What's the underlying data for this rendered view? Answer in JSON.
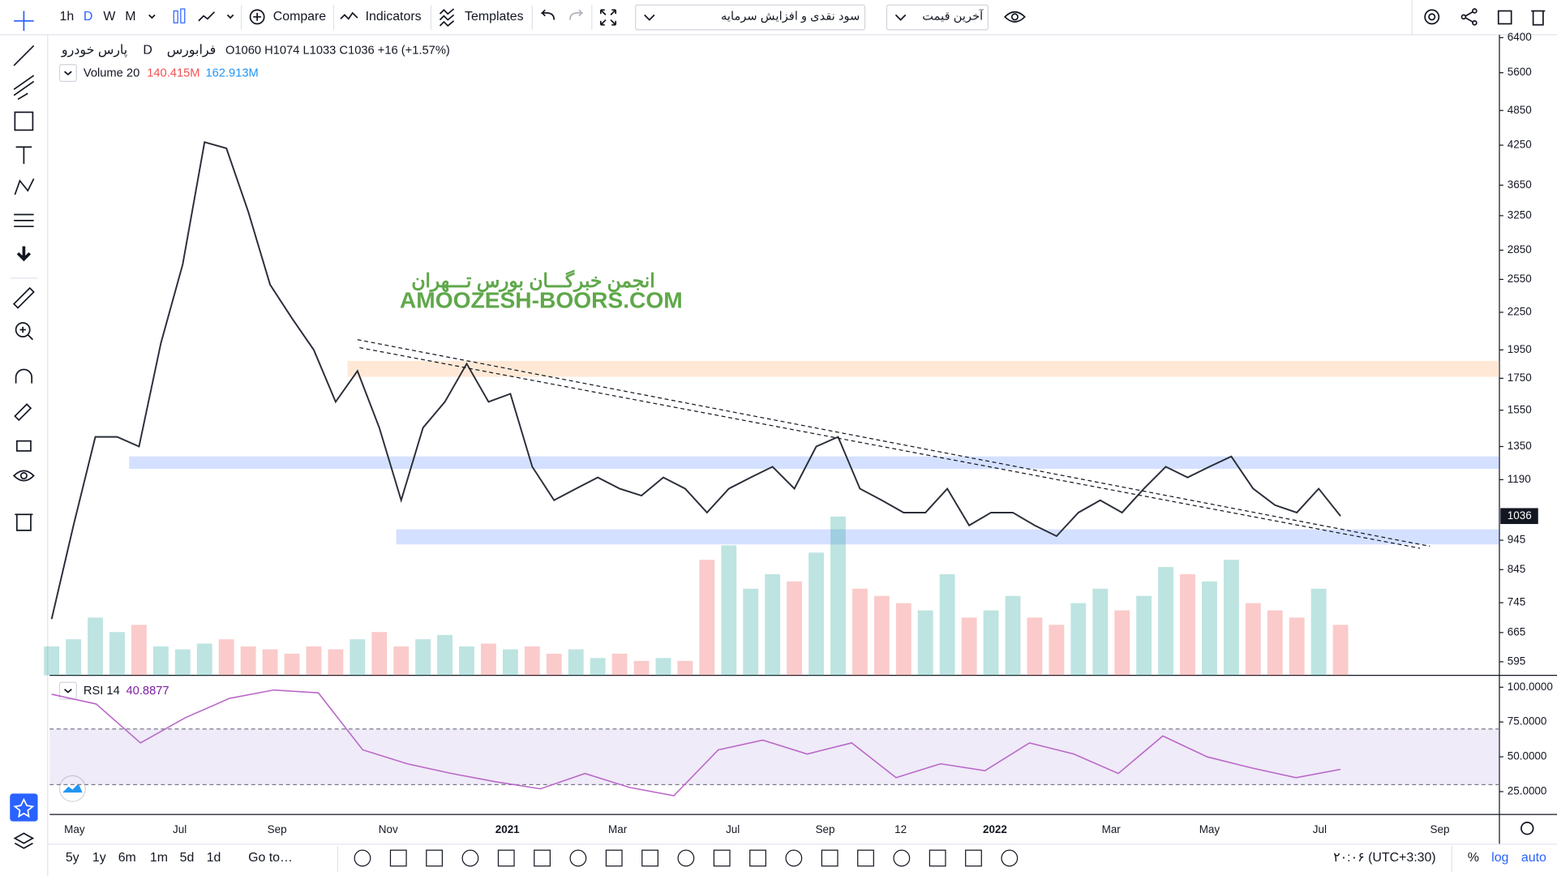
{
  "toolbar": {
    "intervals": [
      "1h",
      "D",
      "W",
      "M"
    ],
    "compare": "Compare",
    "indicators": "Indicators",
    "templates": "Templates",
    "dropdown_1": "سود نقدی و افزایش سرمایه",
    "dropdown_2": "آخرین قیمت"
  },
  "legend": {
    "symbol": "پارس خودرو",
    "interval": "D",
    "exchange": "فرابورس",
    "ohlc": "O1060 H1074 L1033 C1036 +16 (+1.57%)",
    "volume_label": "Volume 20",
    "volume_value_1": "140.415M",
    "volume_value_2": "162.913M"
  },
  "watermark": {
    "line_1": "انجمن خبرگـــان بورس تـــهران",
    "line_2": "AMOOZESH-BOORS.COM"
  },
  "chart_data": {
    "type": "line",
    "log_scale": true,
    "color": "#2a2e39",
    "ylim": [
      565,
      6470
    ],
    "yticks": [
      6400,
      5600,
      4850,
      4250,
      3650,
      3250,
      2850,
      2550,
      2250,
      1950,
      1750,
      1550,
      1350,
      1190,
      945,
      845,
      745,
      665,
      595
    ],
    "values": [
      700,
      1000,
      1400,
      1400,
      1350,
      2000,
      2700,
      4300,
      4200,
      3300,
      2500,
      2200,
      1950,
      1600,
      1800,
      1450,
      1100,
      1450,
      1600,
      1850,
      1600,
      1650,
      1250,
      1100,
      1150,
      1200,
      1150,
      1120,
      1200,
      1150,
      1050,
      1150,
      1200,
      1250,
      1150,
      1350,
      1400,
      1150,
      1100,
      1050,
      1050,
      1150,
      1000,
      1050,
      1050,
      1000,
      960,
      1050,
      1100,
      1050,
      1150,
      1250,
      1200,
      1250,
      1300,
      1150,
      1080,
      1050,
      1150,
      1036
    ],
    "volume": [
      20,
      25,
      40,
      30,
      35,
      20,
      18,
      22,
      25,
      20,
      18,
      15,
      20,
      18,
      25,
      30,
      20,
      25,
      28,
      20,
      22,
      18,
      20,
      15,
      18,
      12,
      15,
      10,
      12,
      10,
      80,
      90,
      60,
      70,
      65,
      85,
      110,
      60,
      55,
      50,
      45,
      70,
      40,
      45,
      55,
      40,
      35,
      50,
      60,
      45,
      55,
      75,
      70,
      65,
      80,
      50,
      45,
      40,
      60,
      35
    ],
    "last_price": 1036,
    "zones": [
      [
        1760,
        1870
      ],
      [
        1240,
        1300
      ],
      [
        930,
        985
      ]
    ],
    "x_labels": [
      "May",
      "Jul",
      "Sep",
      "Nov",
      "2021",
      "Mar",
      "Jul",
      "Sep",
      "12",
      "2022",
      "Mar",
      "May",
      "Jul",
      "Sep"
    ]
  },
  "rsi": {
    "label": "RSI 14",
    "value": "40.8877",
    "ylim": [
      8.6,
      107.1
    ],
    "yticks": [
      {
        "value": 100,
        "label": "100.0000"
      },
      {
        "value": 75,
        "label": "75.0000"
      },
      {
        "value": 50,
        "label": "50.0000"
      },
      {
        "value": 25,
        "label": "25.0000"
      }
    ],
    "band": [
      30,
      70
    ],
    "values": [
      95,
      88,
      60,
      78,
      92,
      98,
      96,
      55,
      45,
      38,
      32,
      27,
      38,
      28,
      22,
      55,
      62,
      52,
      60,
      35,
      45,
      40,
      60,
      52,
      38,
      65,
      50,
      42,
      35,
      41
    ]
  },
  "bottom_bar": {
    "ranges": [
      "5y",
      "1y",
      "6m",
      "1m",
      "5d",
      "1d"
    ],
    "goto": "Go to…",
    "clock": "۲۰:۰۶ (UTC+3:30)",
    "percent": "%",
    "log": "log",
    "auto": "auto"
  }
}
